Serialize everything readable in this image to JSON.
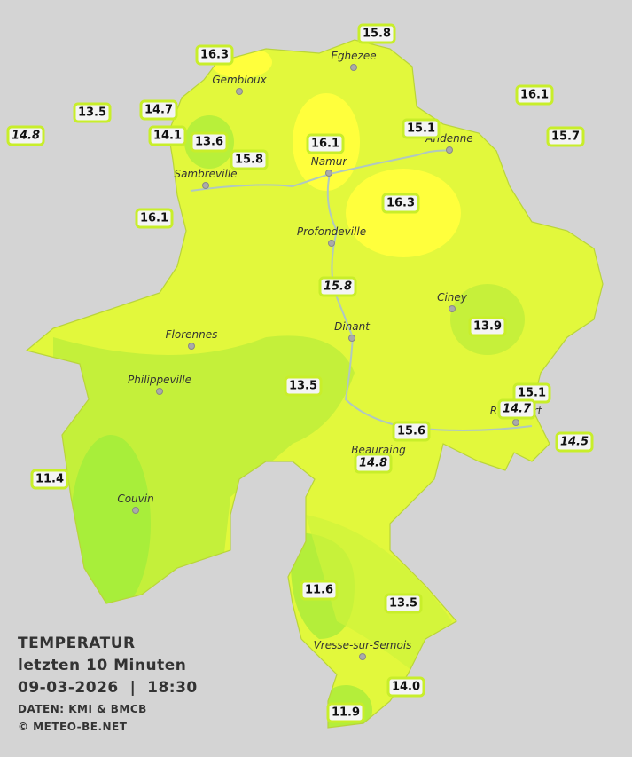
{
  "legend": {
    "title": "TEMPERATUR",
    "period": "letzten 10 Minuten",
    "datetime": "09-03-2026  |  18:30",
    "source": "DATEN: KMI & BMCB",
    "copyright": "© METEO-BE.NET"
  },
  "towns": [
    "Eghezee",
    "Gembloux",
    "Andenne",
    "Namur",
    "Sambreville",
    "Profondeville",
    "Ciney",
    "Dinant",
    "Florennes",
    "Philippeville",
    "Rochefort",
    "Beauraing",
    "Couvin",
    "Vresse-sur-Semois"
  ],
  "stations": [
    {
      "label": "16.3"
    },
    {
      "label": "15.8"
    },
    {
      "label": "16.1"
    },
    {
      "label": "13.5"
    },
    {
      "label": "14.7"
    },
    {
      "label": "14.8",
      "italic": true
    },
    {
      "label": "14.1"
    },
    {
      "label": "13.6"
    },
    {
      "label": "15.8"
    },
    {
      "label": "16.1"
    },
    {
      "label": "15.1"
    },
    {
      "label": "15.7"
    },
    {
      "label": "16.3"
    },
    {
      "label": "16.1"
    },
    {
      "label": "15.8",
      "italic": true
    },
    {
      "label": "13.9"
    },
    {
      "label": "13.5"
    },
    {
      "label": "15.1"
    },
    {
      "label": "14.7",
      "italic": true
    },
    {
      "label": "14.5",
      "italic": true
    },
    {
      "label": "15.6"
    },
    {
      "label": "14.8",
      "italic": true
    },
    {
      "label": "11.4"
    },
    {
      "label": "11.6"
    },
    {
      "label": "13.5"
    },
    {
      "label": "14.0"
    },
    {
      "label": "11.9"
    }
  ]
}
